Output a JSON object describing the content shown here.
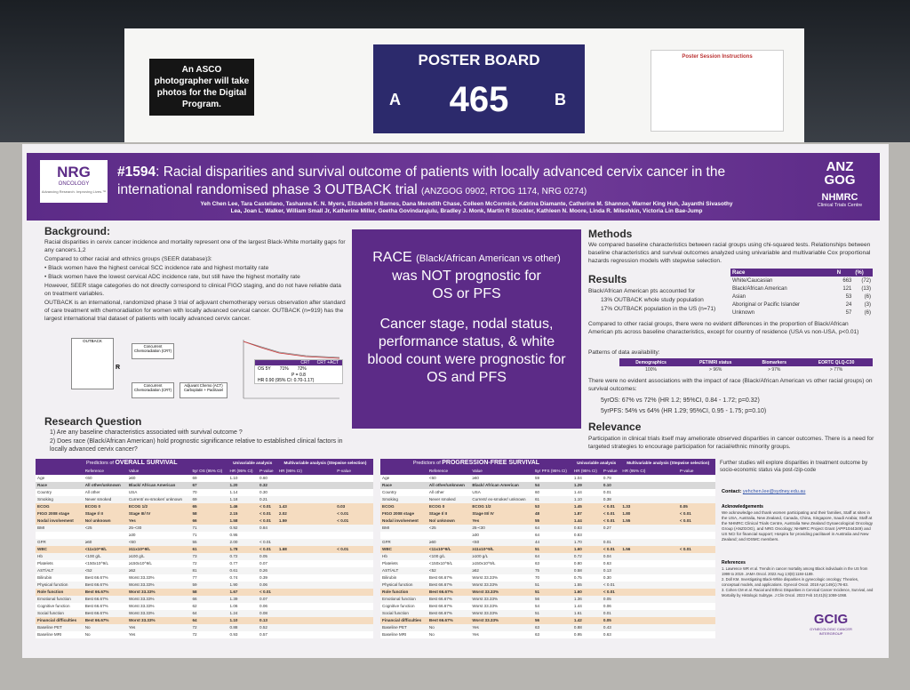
{
  "board": {
    "notice": "An ASCO photographer will take photos for the Digital Program.",
    "label": "POSTER BOARD",
    "left": "A",
    "number": "465",
    "right": "B",
    "instructions_title": "Poster Session Instructions"
  },
  "poster": {
    "org_logo": "NRG",
    "org_sub": "ONCOLOGY",
    "org_tagline": "Advancing Research. Improving Lives.™",
    "title_id": "#1594",
    "title": ": Racial disparities and survival outcome of patients with locally advanced cervix cancer in the international randomised phase 3 OUTBACK trial",
    "title_suffix": "(ANZGOG 0902, RTOG 1174, NRG 0274)",
    "authors": "Yeh Chen Lee, Tara Castellano, Tashanna K. N. Myers, Elizabeth H Barnes, Dana Meredith Chase, Colleen McCormick, Katrina Diamante, Catherine M. Shannon, Warner King Huh, Jayanthi Sivasothy Lea, Joan L. Walker, William Small Jr, Katherine Miller, Geetha Govindarajulu, Bradley J. Monk, Martin R Stockler, Kathleen N. Moore, Linda R. Mileshkin, Victoria Lin Bae-Jump",
    "logo_right": "ANZ GOG",
    "logo_right2": "NHMRC",
    "logo_right3": "Clinical Trials Centre",
    "background": {
      "heading": "Background:",
      "paragraphs": [
        "Racial disparities in cervix cancer incidence and mortality represent one of the largest Black-White mortality gaps for any cancers.1,2",
        "Compared to other racial and ethnics groups (SEER database)3:",
        "•  Black women have the highest cervical SCC incidence rate and highest mortality rate",
        "•  Black women have the lowest cervical ADC incidence rate, but still have the highest mortality rate",
        "However, SEER stage categories do not directly correspond to clinical FIGO staging, and do not have reliable data on treatment variables.",
        "OUTBACK is an international, randomized phase 3 trial of adjuvant chemotherapy versus observation after standard of care treatment with chemoradiation for women with locally advanced cervical cancer. OUTBACK (n=919) has the largest international trial dataset of patients with locally advanced cervix cancer."
      ]
    },
    "figure": {
      "trial": "OUTBACK",
      "randomise": "R",
      "arm1": "Concurrent Chemoradiation (CRT)",
      "arm2": "Concurrent Chemoradiation (CRT)",
      "arm2_adjuvant": "Adjuvant Chemo (ACT) Carboplatin + Paclitaxel",
      "km_col1": "CRT",
      "km_col2": "CRT +ACT",
      "km_row1": "OS 5Y",
      "km_v1": "71%",
      "km_v2": "72%",
      "km_p": "P = 0.8",
      "km_hr": "HR",
      "km_hr_value": "0.90 (95% CI: 0.70-1.17)"
    },
    "research_question": {
      "heading": "Research Question",
      "items": [
        "1)  Are any baseline characteristics associated with survival outcome ?",
        "2)  Does race (Black/African American) hold prognostic significance relative to established clinical factors in locally advanced cervix cancer?"
      ]
    },
    "key_message": {
      "race": "RACE",
      "race_detail": "(Black/African American vs other)",
      "finding1": "was NOT prognostic for OS or PFS",
      "finding2": "Cancer stage, nodal status, performance status, & white blood count were prognostic for OS and PFS"
    },
    "methods": {
      "heading": "Methods",
      "text": "We compared baseline characteristics between racial groups using chi-squared tests. Relationships between baseline characteristics and survival outcomes analyzed using univariable and multivariable Cox proportional hazards regression models with stepwise selection."
    },
    "results": {
      "heading": "Results",
      "intro": "Black/African American pts accounted for",
      "items": [
        "13% OUTBACK whole study population",
        "17% OUTBACK population in the US (n=71)"
      ],
      "race_table": {
        "columns": [
          "Race",
          "N",
          "(%)"
        ],
        "rows": [
          [
            "White/Caucasian",
            "663",
            "(72)"
          ],
          [
            "Black/African American",
            "121",
            "(13)"
          ],
          [
            "Asian",
            "53",
            "(6)"
          ],
          [
            "Aboriginal or Pacific Islander",
            "24",
            "(3)"
          ],
          [
            "Unknown",
            "57",
            "(6)"
          ]
        ]
      },
      "compared": "Compared to other racial groups, there were no evident differences in the proportion of Black/African American pts across baseline characteristics, except for country of residence (USA vs non-USA, p<0.01)",
      "patterns": "Patterns of data availability:",
      "availability": {
        "columns": [
          "Demographics",
          "PET/MRI status",
          "Biomarkers",
          "EORTC QLQ-C30"
        ],
        "values": [
          "100%",
          "> 96%",
          "> 97%",
          "> 77%"
        ]
      },
      "association": "There were no evident associations with the impact of race (Black/African American vs other racial groups) on survival outcomes:",
      "os": "5yrOS:   67% vs 72% (HR 1.2; 95%CI, 0.84 - 1.72; p=0.32)",
      "pfs": "5yrPFS: 54% vs 64% (HR 1.29; 95%CI, 0.95 - 1.75; p=0.10)"
    },
    "relevance": {
      "heading": "Relevance",
      "text": "Participation in clinical trials itself may ameliorate observed disparities in cancer outcomes. There is a need for targeted strategies to encourage participation for racial/ethnic minority groups.",
      "further": "Further studies will explore disparities in treatment outcome by socio-economic status via post-/zip-code"
    },
    "contact": {
      "label": "Contact:",
      "email": "yehchen.lee@sydney.edu.au"
    },
    "acknowledgements": {
      "heading": "Acknowledgements",
      "text": "We acknowledge and thank women participating and their families, Staff at sites in the USA, Australia, New Zealand, Canada, China, Singapore, Saudi Arabia; Staff at the NHMRC Clinical Trials Centre, Australia New Zealand Gynaecological Oncology Group (ANZGOG), and NRG Oncology; NHMRC Project Grant (APP1044349) and US NCI for financial support; Hospira for providing paclitaxel in Australia and New Zealand; and IDSMC members."
    },
    "references": {
      "heading": "References",
      "items": [
        "1. Lawrence WR et al. Trends in cancer mortality among Black individuals in the US from 1999 to 2019. JAMA Oncol. 2022 Aug 1;8(8):1184-1189.",
        "2. Doll KM. Investigating Black-White disparities in gynecologic oncology: Theories, conceptual models, and applications. Gynecol Oncol. 2018 Apr;149(1):78-83.",
        "3. Cohen CM et al. Racial and Ethnic Disparities in Cervical Cancer Incidence, Survival, and Mortality by Histologic Subtype. J Clin Oncol. 2023 Feb 10;41(5):1059-1068."
      ]
    },
    "footer_logo": "GCIG",
    "footer_logo_sub": "GYNECOLOGIC CANCER INTERGROUP",
    "os_table": {
      "title_prefix": "Predictors of ",
      "title_bold": "OVERALL SURVIVAL",
      "group_headers": [
        "Univariable analysis",
        "Multivariable analysis (Stepwise selection)"
      ],
      "columns": [
        null,
        "Reference",
        "Value",
        "5yr OS (95% CI)",
        "HR (95% CI)",
        "P-value",
        "HR (95% CI)",
        "P-value"
      ],
      "emphasis": [
        1
      ],
      "highlight": [
        4,
        5,
        6,
        10,
        16,
        20
      ],
      "rows": [
        [
          "Age",
          "<60",
          "≥60",
          "69",
          "1.10",
          "0.60",
          null,
          null
        ],
        [
          "Race",
          "All other/unknown",
          "Black/ African American",
          "67",
          "1.20",
          "0.32",
          null,
          null
        ],
        [
          "Country",
          "All other",
          "USA",
          "70",
          "1.14",
          "0.30",
          null,
          null
        ],
        [
          "Smoking",
          "Never smoked",
          "Current/ ex-smoker/ unknown",
          "69",
          "1.18",
          "0.21",
          null,
          null
        ],
        [
          "ECOG",
          "ECOG 0",
          "ECOG 1/2",
          "65",
          "1.46",
          "< 0.01",
          "1.43",
          "0.03"
        ],
        [
          "FIGO 2008 stage",
          "Stage I/ II",
          "Stage III/ IV",
          "58",
          "2.15",
          "< 0.01",
          "2.02",
          "< 0.01"
        ],
        [
          "Nodal involvement",
          "No/ unknown",
          "Yes",
          "66",
          "1.58",
          "< 0.01",
          "1.59",
          "< 0.01"
        ],
        [
          "BMI",
          "<25",
          "25-<30",
          "71",
          "0.92",
          "0.84",
          null,
          null
        ],
        [
          null,
          null,
          "≥30",
          "71",
          "0.95",
          null,
          null,
          null
        ],
        [
          "GFR",
          "≥60",
          "<60",
          "55",
          "2.00",
          "< 0.01",
          null,
          null
        ],
        [
          "WBC",
          "<11x10^9/L",
          "≥11x10^9/L",
          "61",
          "1.78",
          "< 0.01",
          "1.68",
          "< 0.01"
        ],
        [
          "Hb",
          "<100 g/L",
          "≥100 g/L",
          "73",
          "0.72",
          "0.05",
          null,
          null
        ],
        [
          "Platelets",
          "<150x10^9/L",
          "≥150x10^9/L",
          "72",
          "0.77",
          "0.07",
          null,
          null
        ],
        [
          "AST/ALT",
          "<52",
          "≥52",
          "81",
          "0.61",
          "0.26",
          null,
          null
        ],
        [
          "Bilirubin",
          "Best 66.67%",
          "Worst 33.33%",
          "77",
          "0.74",
          "0.39",
          null,
          null
        ],
        [
          "Physical function",
          "Best 66.67%",
          "Worst 33.33%",
          "59",
          "1.90",
          "0.06",
          null,
          null
        ],
        [
          "Role function",
          "Best 66.67%",
          "Worst 33.33%",
          "58",
          "1.67",
          "< 0.01",
          null,
          null
        ],
        [
          "Emotional function",
          "Best 66.67%",
          "Worst 33.33%",
          "66",
          "1.39",
          "0.07",
          null,
          null
        ],
        [
          "Cognitive function",
          "Best 66.67%",
          "Worst 33.33%",
          "62",
          "1.06",
          "0.06",
          null,
          null
        ],
        [
          "Social function",
          "Best 66.67%",
          "Worst 33.33%",
          "64",
          "1.24",
          "0.08",
          null,
          null
        ],
        [
          "Financial difficulties",
          "Best 66.67%",
          "Worst 33.33%",
          "64",
          "1.10",
          "0.13",
          null,
          null
        ],
        [
          "Baseline PET",
          "No",
          "Yes",
          "72",
          "0.88",
          "0.52",
          null,
          null
        ],
        [
          "Baseline MRI",
          "No",
          "Yes",
          "72",
          "0.93",
          "0.57",
          null,
          null
        ]
      ]
    },
    "pfs_table": {
      "title_prefix": "Predictors of ",
      "title_bold": "PROGRESSION-FREE SURVIVAL",
      "group_headers": [
        "Univariable analysis",
        "Multivariable analysis (Stepwise selection)"
      ],
      "columns": [
        null,
        "Reference",
        "Value",
        "5yr PFS (95% CI)",
        "HR (95% CI)",
        "P-value",
        "HR (95% CI)",
        "P-value"
      ],
      "emphasis": [
        1
      ],
      "highlight": [
        4,
        5,
        6,
        10,
        16,
        20
      ],
      "rows": [
        [
          "Age",
          "<60",
          "≥60",
          "59",
          "1.04",
          "0.79",
          null,
          null
        ],
        [
          "Race",
          "All other/unknown",
          "Black/ African American",
          "54",
          "1.29",
          "0.10",
          null,
          null
        ],
        [
          "Country",
          "All other",
          "USA",
          "60",
          "1.44",
          "0.01",
          null,
          null
        ],
        [
          "Smoking",
          "Never smoked",
          "Current/ ex-smoker/ unknown",
          "61",
          "1.10",
          "0.38",
          null,
          null
        ],
        [
          "ECOG",
          "ECOG 0",
          "ECOG 1/2",
          "53",
          "1.45",
          "< 0.01",
          "1.33",
          "0.05"
        ],
        [
          "FIGO 2008 stage",
          "Stage I/ II",
          "Stage III/ IV",
          "48",
          "1.87",
          "< 0.01",
          "1.80",
          "< 0.01"
        ],
        [
          "Nodal involvement",
          "No/ unknown",
          "Yes",
          "55",
          "1.44",
          "< 0.01",
          "1.55",
          "< 0.01"
        ],
        [
          "BMI",
          "<25",
          "25-<30",
          "64",
          "0.83",
          "0.27",
          null,
          null
        ],
        [
          null,
          null,
          "≥30",
          "64",
          "0.83",
          null,
          null,
          null
        ],
        [
          "GFR",
          "≥60",
          "<60",
          "44",
          "1.70",
          "0.01",
          null,
          null
        ],
        [
          "WBC",
          "<11x10^9/L",
          "≥11x10^9/L",
          "51",
          "1.60",
          "< 0.01",
          "1.56",
          "< 0.01"
        ],
        [
          "Hb",
          "<100 g/L",
          "≥100 g/L",
          "64",
          "0.72",
          "0.04",
          null,
          null
        ],
        [
          "Platelets",
          "<150x10^9/L",
          "≥150x10^9/L",
          "63",
          "0.80",
          "0.63",
          null,
          null
        ],
        [
          "AST/ALT",
          "<52",
          "≥52",
          "75",
          "0.58",
          "0.13",
          null,
          null
        ],
        [
          "Bilirubin",
          "Best 66.67%",
          "Worst 33.33%",
          "70",
          "0.75",
          "0.30",
          null,
          null
        ],
        [
          "Physical function",
          "Best 66.67%",
          "Worst 33.33%",
          "51",
          "1.55",
          "< 0.01",
          null,
          null
        ],
        [
          "Role function",
          "Best 66.67%",
          "Worst 33.33%",
          "51",
          "1.60",
          "< 0.01",
          null,
          null
        ],
        [
          "Emotional function",
          "Best 66.67%",
          "Worst 33.33%",
          "56",
          "1.36",
          "0.05",
          null,
          null
        ],
        [
          "Cognitive function",
          "Best 66.67%",
          "Worst 33.33%",
          "54",
          "1.44",
          "0.06",
          null,
          null
        ],
        [
          "Social function",
          "Best 66.67%",
          "Worst 33.33%",
          "51",
          "1.61",
          "0.01",
          null,
          null
        ],
        [
          "Financial difficulties",
          "Best 66.67%",
          "Worst 33.33%",
          "56",
          "1.42",
          "0.05",
          null,
          null
        ],
        [
          "Baseline PET",
          "No",
          "Yes",
          "63",
          "0.88",
          "0.43",
          null,
          null
        ],
        [
          "Baseline MRI",
          "No",
          "Yes",
          "63",
          "0.95",
          "0.63",
          null,
          null
        ]
      ]
    }
  }
}
